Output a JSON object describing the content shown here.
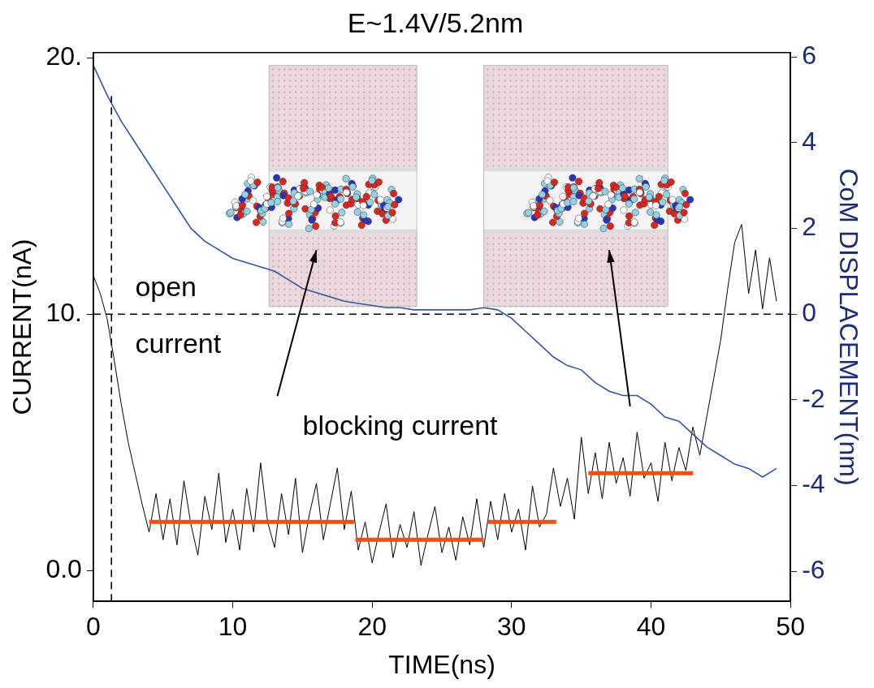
{
  "chart_data": {
    "type": "line",
    "title": "E~1.4V/5.2nm",
    "x_label": "TIME(ns)",
    "y_label": "CURRENT(nA)",
    "y2_label": "CoM DISPLACEMENT(nm)",
    "xlim": [
      0,
      50
    ],
    "xticks": [
      0,
      10,
      20,
      30,
      40,
      50
    ],
    "ylim": [
      -1.2,
      20.2
    ],
    "yticks": [
      {
        "value": 0,
        "label": "0.0"
      },
      {
        "value": 10,
        "label": "10."
      },
      {
        "value": 20,
        "label": "20."
      }
    ],
    "y2lim": [
      -6.7,
      6.1
    ],
    "y2ticks": [
      -6,
      -4,
      -2,
      0,
      2,
      4,
      6
    ],
    "grid": false,
    "annotations": [
      "open current",
      "blocking current"
    ],
    "series": [
      {
        "color": "#000000",
        "axis": "y",
        "line_style": "solid",
        "x": [
          0,
          0.5,
          1,
          1.5,
          2,
          2.5,
          3,
          3.5,
          4,
          4.5,
          5,
          5.5,
          6,
          6.5,
          7,
          7.5,
          8,
          8.5,
          9,
          9.5,
          10,
          10.5,
          11,
          11.5,
          12,
          12.5,
          13,
          13.5,
          14,
          14.5,
          15,
          15.5,
          16,
          16.5,
          17,
          17.5,
          18,
          18.5,
          19,
          19.5,
          20,
          20.5,
          21,
          21.5,
          22,
          22.5,
          23,
          23.5,
          24,
          24.5,
          25,
          25.5,
          26,
          26.5,
          27,
          27.5,
          28,
          28.5,
          29,
          29.5,
          30,
          30.5,
          31,
          31.5,
          32,
          32.5,
          33,
          33.5,
          34,
          34.5,
          35,
          35.5,
          36,
          36.5,
          37,
          37.5,
          38,
          38.5,
          39,
          39.5,
          40,
          40.5,
          41,
          41.5,
          42,
          42.5,
          43,
          43.5,
          44,
          44.5,
          45,
          45.5,
          46,
          46.5,
          47,
          47.5,
          48,
          48.5,
          49
        ],
        "values": [
          11.5,
          10.8,
          9.8,
          8.2,
          6.5,
          5,
          3.8,
          2.6,
          1.5,
          3.0,
          1.2,
          2.8,
          1.0,
          3.5,
          1.8,
          0.6,
          2.9,
          1.6,
          3.8,
          1.1,
          2.4,
          0.8,
          3.2,
          1.5,
          4.2,
          1.9,
          0.9,
          3.0,
          1.4,
          3.6,
          0.7,
          2.2,
          3.4,
          1.2,
          2.6,
          4.0,
          1.6,
          3.1,
          0.8,
          1.9,
          0.3,
          1.5,
          2.6,
          0.5,
          1.8,
          0.9,
          2.3,
          0.2,
          1.4,
          2.5,
          0.7,
          1.7,
          0.4,
          2.1,
          1.0,
          2.8,
          0.9,
          2.7,
          1.2,
          3.0,
          1.5,
          2.4,
          0.8,
          3.3,
          1.7,
          2.2,
          4.0,
          2.5,
          3.6,
          2.0,
          5.2,
          3.0,
          4.6,
          2.8,
          5.0,
          3.4,
          4.4,
          2.9,
          5.4,
          3.6,
          4.2,
          2.7,
          5.0,
          3.5,
          4.8,
          3.9,
          5.6,
          4.5,
          6.0,
          7.5,
          9.0,
          11.0,
          12.8,
          13.5,
          10.8,
          12.5,
          10.2,
          12.2,
          10.5
        ]
      },
      {
        "color": "#2f55a4",
        "axis": "y2",
        "line_style": "solid",
        "x": [
          0,
          1,
          2,
          3,
          4,
          5,
          6,
          7,
          8,
          9,
          10,
          11,
          12,
          13,
          14,
          15,
          16,
          17,
          18,
          19,
          20,
          21,
          22,
          23,
          24,
          25,
          26,
          27,
          28,
          29,
          30,
          31,
          32,
          33,
          34,
          35,
          36,
          37,
          38,
          39,
          40,
          41,
          42,
          43,
          44,
          45,
          46,
          47,
          48,
          49
        ],
        "values": [
          5.8,
          5.1,
          4.5,
          4.0,
          3.5,
          3.0,
          2.5,
          2.0,
          1.7,
          1.5,
          1.3,
          1.2,
          1.1,
          1.0,
          0.8,
          0.6,
          0.5,
          0.4,
          0.3,
          0.25,
          0.2,
          0.15,
          0.15,
          0.1,
          0.1,
          0.1,
          0.1,
          0.1,
          0.15,
          0.1,
          -0.1,
          -0.4,
          -0.7,
          -1.0,
          -1.2,
          -1.3,
          -1.6,
          -1.8,
          -1.9,
          -1.9,
          -2.1,
          -2.4,
          -2.5,
          -2.8,
          -3.1,
          -3.3,
          -3.5,
          -3.6,
          -3.8,
          -3.6
        ]
      },
      {
        "color": "#ff4a10",
        "axis": "y",
        "line_style": "solid",
        "x": [
          4,
          18.7,
          18.75,
          18.8,
          28,
          28.1,
          28.3,
          33.2,
          34,
          35.5,
          43
        ],
        "values": [
          1.9,
          1.9,
          null,
          1.2,
          1.2,
          null,
          1.9,
          1.9,
          null,
          3.8,
          3.8
        ]
      },
      {
        "color": "#000000",
        "axis": "y",
        "line_style": "dashed",
        "x": [
          0,
          50
        ],
        "values": [
          10,
          10
        ]
      },
      {
        "color": "#000000",
        "axis": "y",
        "line_style": "dashed",
        "x": [
          1.3,
          1.3
        ],
        "values": [
          -1.2,
          18.5
        ]
      }
    ]
  }
}
